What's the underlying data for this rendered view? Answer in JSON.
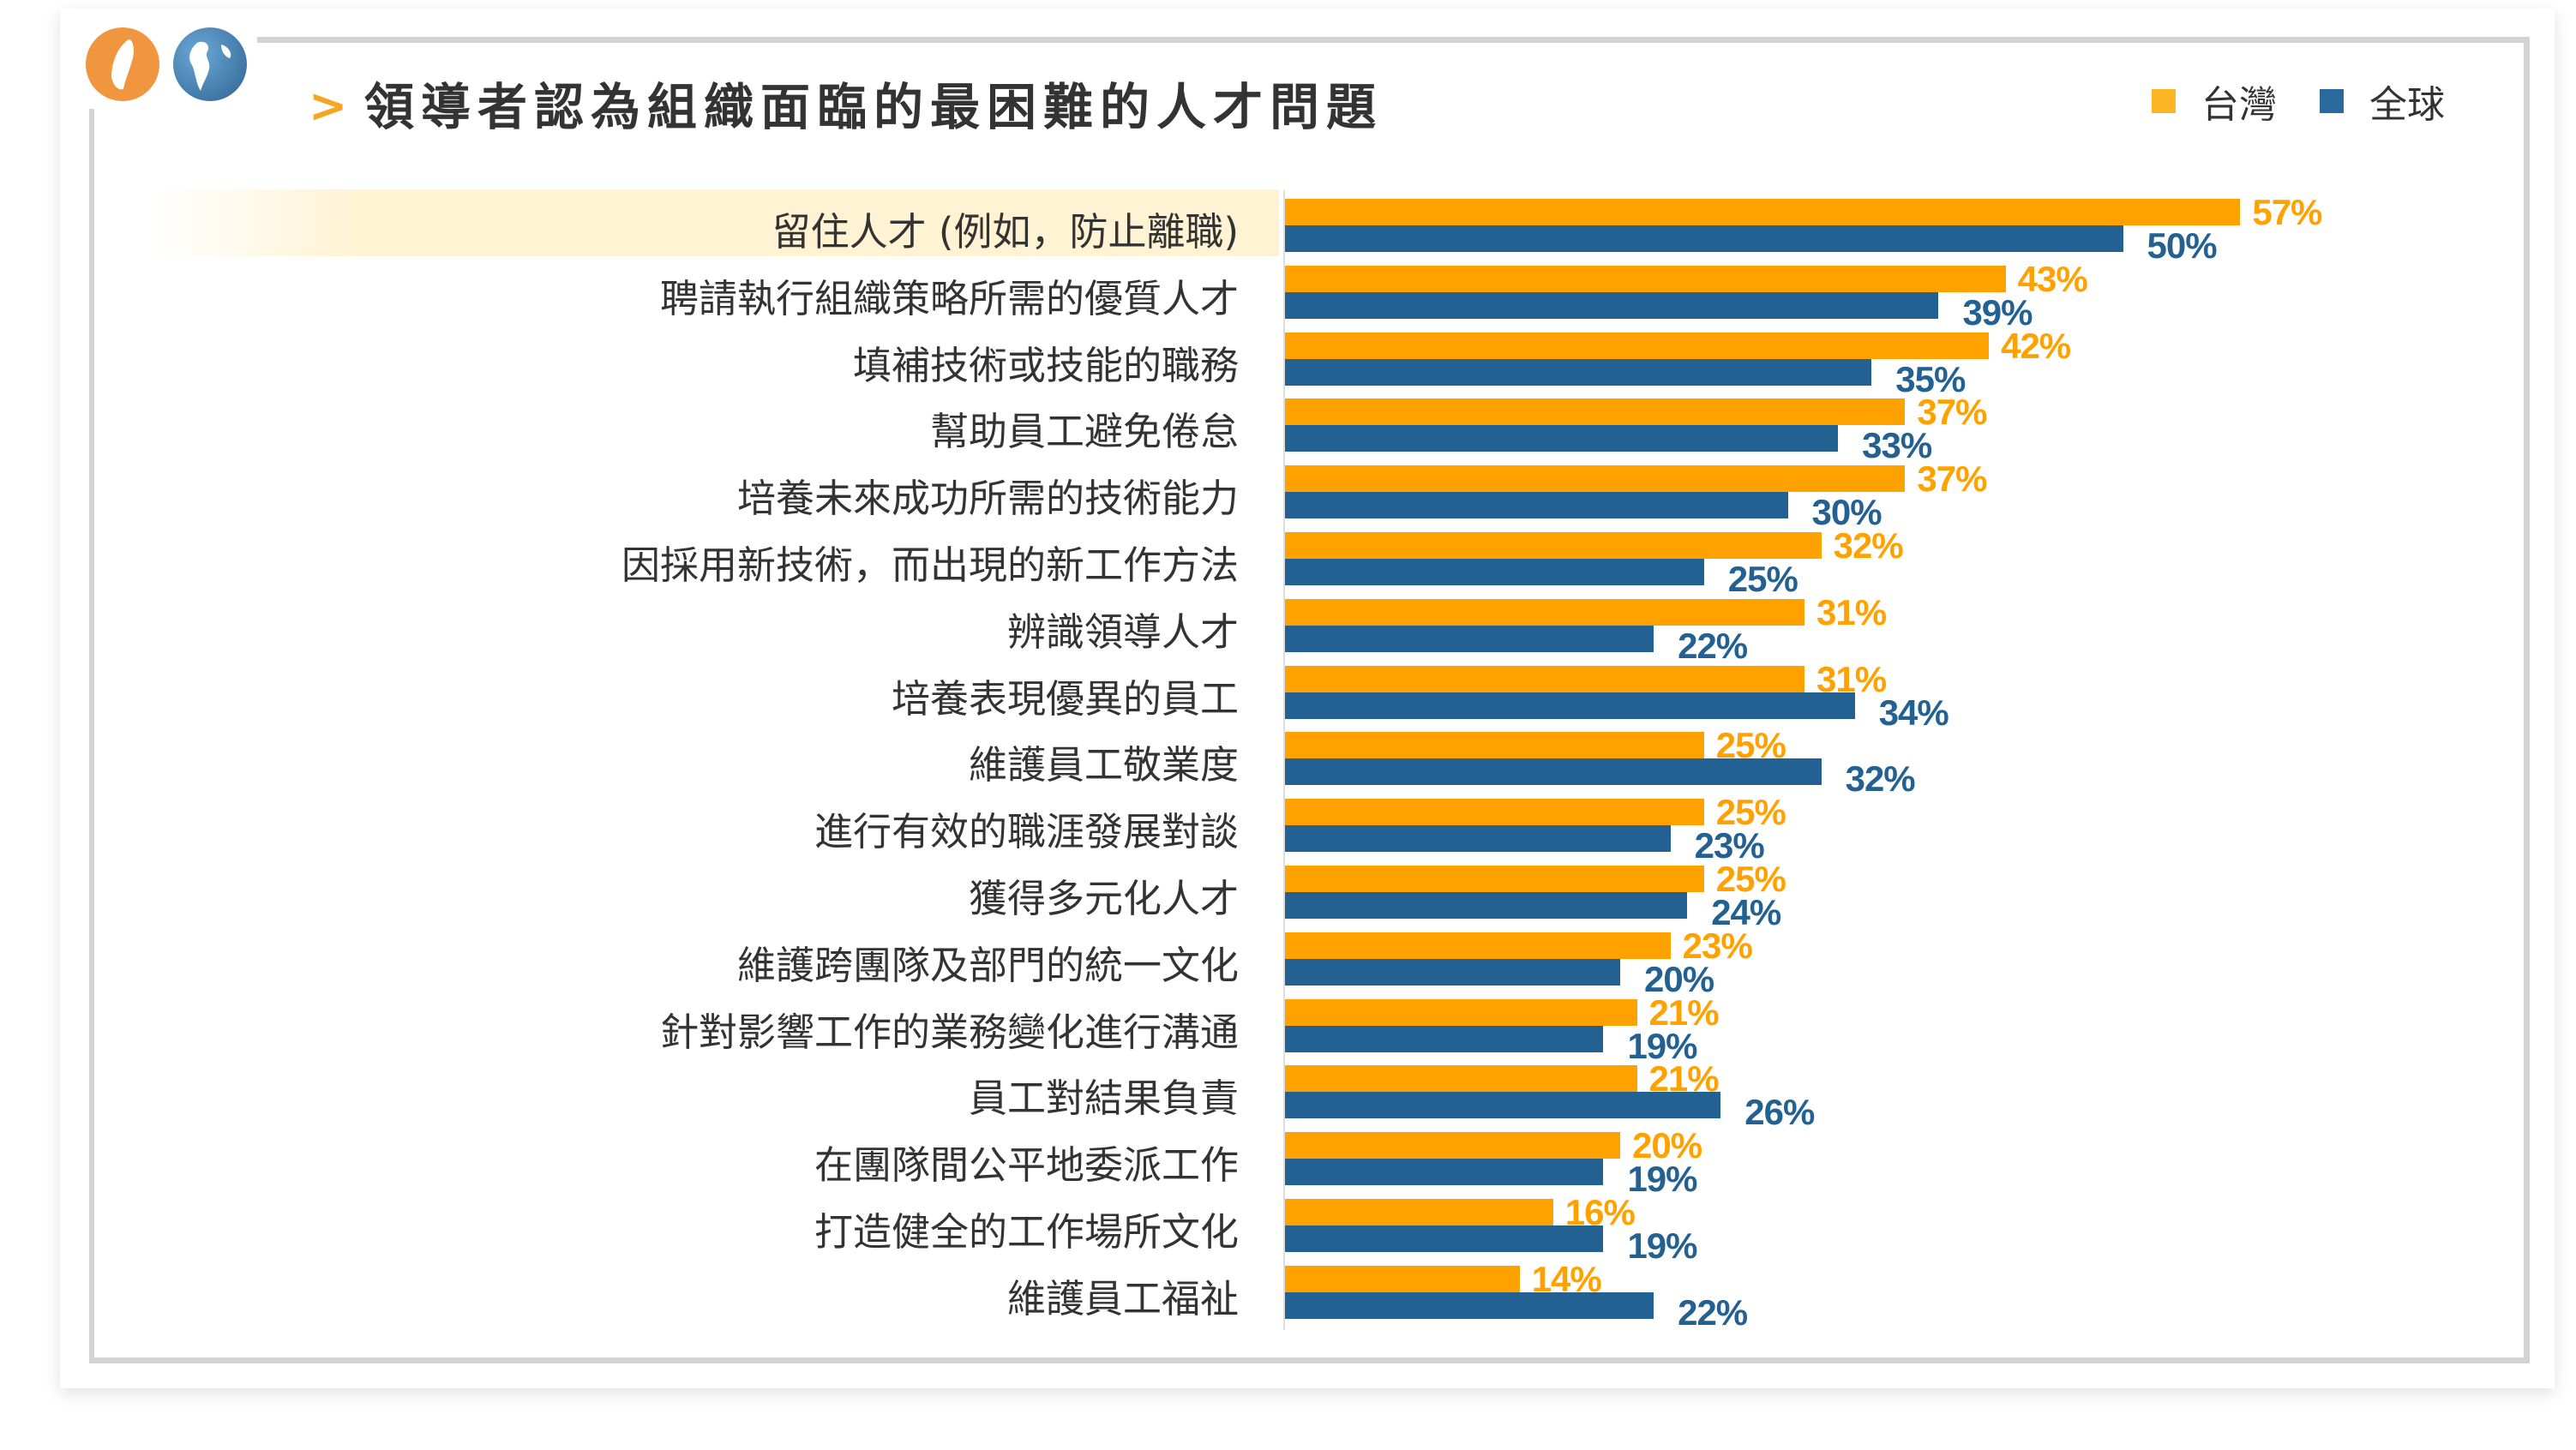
{
  "header": {
    "title": "領導者認為組織面臨的最困難的人才問題"
  },
  "icons": [
    "taiwan-map-icon",
    "globe-icon",
    "chevron-right-icon"
  ],
  "colors": {
    "taiwan": "#ffa200",
    "global": "#236192",
    "highlight": "#fff3d3"
  },
  "chart_data": {
    "type": "bar",
    "orientation": "horizontal",
    "title": "領導者認為組織面臨的最困難的人才問題",
    "legend_position": "top-right",
    "categories": [
      "留住人才 (例如，防止離職)",
      "聘請執行組織策略所需的優質人才",
      "填補技術或技能的職務",
      "幫助員工避免倦怠",
      "培養未來成功所需的技術能力",
      "因採用新技術，而出現的新工作方法",
      "辨識領導人才",
      "培養表現優異的員工",
      "維護員工敬業度",
      "進行有效的職涯發展對談",
      "獲得多元化人才",
      "維護跨團隊及部門的統一文化",
      "針對影響工作的業務變化進行溝通",
      "員工對結果負責",
      "在團隊間公平地委派工作",
      "打造健全的工作場所文化",
      "維護員工福祉"
    ],
    "series": [
      {
        "name": "台灣",
        "color": "#ffa200",
        "values": [
          57,
          43,
          42,
          37,
          37,
          32,
          31,
          31,
          25,
          25,
          25,
          23,
          21,
          21,
          20,
          16,
          14
        ]
      },
      {
        "name": "全球",
        "color": "#236192",
        "values": [
          50,
          39,
          35,
          33,
          30,
          25,
          22,
          34,
          32,
          23,
          24,
          20,
          19,
          26,
          19,
          19,
          22
        ]
      }
    ],
    "unit": "%",
    "grid": false,
    "highlighted_category": "留住人才 (例如，防止離職)"
  }
}
